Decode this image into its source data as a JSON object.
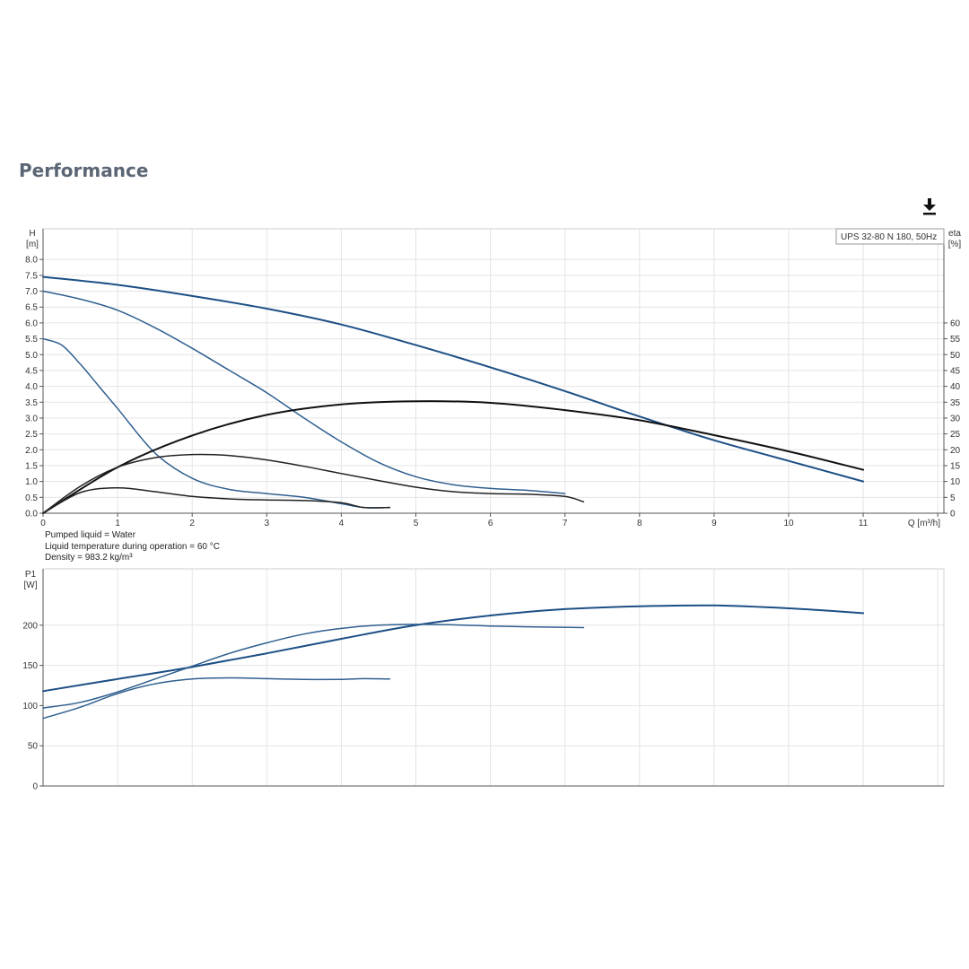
{
  "page": {
    "heading": "Performance",
    "download_icon": "download-icon",
    "colors": {
      "blue": "#2f5f8f",
      "dark_blue": "#1d4f85",
      "black": "#111111",
      "grid": "#e2e2e2"
    }
  },
  "legend": {
    "text": "UPS 32-80 N 180, 50Hz"
  },
  "conditions": [
    "Pumped liquid = Water",
    "Liquid temperature during operation = 60 °C",
    "Density = 983.2 kg/m³"
  ],
  "chart_data": [
    {
      "type": "line",
      "name": "head-and-efficiency",
      "xlabel": "Q [m³/h]",
      "ylabel": "H\n[m]",
      "y2label": "eta\n[%]",
      "xlim": [
        0,
        12
      ],
      "ylim": [
        0,
        9
      ],
      "y2lim": [
        0,
        90
      ],
      "xticks": [
        0,
        1,
        2,
        3,
        4,
        5,
        6,
        7,
        8,
        9,
        10,
        11
      ],
      "yticks": [
        0,
        0.5,
        1,
        1.5,
        2,
        2.5,
        3,
        3.5,
        4,
        4.5,
        5,
        5.5,
        6,
        6.5,
        7,
        7.5,
        8
      ],
      "yticks_labels": [
        "0.0",
        "0.5",
        "1.0",
        "1.5",
        "2.0",
        "2.5",
        "3.0",
        "3.5",
        "4.0",
        "4.5",
        "5.0",
        "5.5",
        "6.0",
        "6.5",
        "7.0",
        "7.5",
        "8.0"
      ],
      "y2ticks": [
        0,
        5,
        10,
        15,
        20,
        25,
        30,
        35,
        40,
        45,
        50,
        55,
        60
      ],
      "grid": true,
      "series": [
        {
          "kind": "head",
          "color": "#1d4f85",
          "width": 2,
          "x": [
            0,
            1,
            2,
            3,
            4,
            5,
            6,
            7,
            8,
            9,
            10,
            11
          ],
          "y": [
            7.45,
            7.2,
            6.85,
            6.45,
            5.95,
            5.3,
            4.6,
            3.85,
            3.05,
            2.3,
            1.65,
            1.0
          ]
        },
        {
          "kind": "head",
          "color": "#2f5f8f",
          "width": 1.5,
          "x": [
            0,
            0.5,
            1,
            1.5,
            2,
            2.5,
            3,
            3.5,
            4,
            4.5,
            5,
            5.5,
            6,
            6.5,
            7
          ],
          "y": [
            7.0,
            6.75,
            6.4,
            5.85,
            5.2,
            4.5,
            3.8,
            3.0,
            2.25,
            1.6,
            1.15,
            0.9,
            0.78,
            0.72,
            0.62
          ]
        },
        {
          "kind": "head",
          "color": "#2f5f8f",
          "width": 1.5,
          "x": [
            0,
            0.25,
            0.5,
            0.75,
            1,
            1.5,
            2,
            2.5,
            3,
            3.5,
            4,
            4.3,
            4.65
          ],
          "y": [
            5.5,
            5.3,
            4.7,
            4.0,
            3.3,
            1.9,
            1.1,
            0.75,
            0.62,
            0.5,
            0.3,
            0.18,
            0.18
          ]
        },
        {
          "kind": "eta",
          "color": "#111111",
          "width": 2,
          "x": [
            0,
            1,
            2,
            3,
            4,
            5,
            6,
            7,
            8,
            9,
            10,
            11
          ],
          "y": [
            0,
            14.5,
            24.5,
            31,
            34.3,
            35.3,
            34.8,
            32.5,
            29.3,
            24.6,
            19.5,
            13.7
          ]
        },
        {
          "kind": "eta",
          "color": "#222222",
          "width": 1.5,
          "x": [
            0,
            0.5,
            1,
            1.5,
            2,
            2.5,
            3,
            3.5,
            4,
            4.5,
            5,
            5.5,
            6,
            6.5,
            7,
            7.25
          ],
          "y": [
            0,
            8.5,
            14.5,
            17.5,
            18.5,
            18.2,
            16.8,
            14.8,
            12.5,
            10.3,
            8.2,
            6.8,
            6.2,
            6.0,
            5.3,
            3.6
          ]
        },
        {
          "kind": "eta",
          "color": "#222222",
          "width": 1.5,
          "x": [
            0,
            0.5,
            1,
            1.5,
            2,
            2.5,
            3,
            3.5,
            4,
            4.3,
            4.65
          ],
          "y": [
            0,
            6.5,
            8.0,
            6.8,
            5.3,
            4.5,
            4.2,
            4.0,
            3.3,
            1.8,
            1.8
          ]
        }
      ]
    },
    {
      "type": "line",
      "name": "power",
      "ylabel": "P1\n[W]",
      "xlim": [
        0,
        12
      ],
      "ylim": [
        0,
        270
      ],
      "xticks": [
        0,
        1,
        2,
        3,
        4,
        5,
        6,
        7,
        8,
        9,
        10,
        11
      ],
      "yticks": [
        0,
        50,
        100,
        150,
        200
      ],
      "grid": true,
      "series": [
        {
          "color": "#1d4f85",
          "width": 2,
          "x": [
            0,
            1,
            2,
            3,
            4,
            5,
            6,
            7,
            8,
            9,
            10,
            11
          ],
          "y": [
            118,
            133,
            148,
            165,
            183,
            200,
            212,
            220,
            223.5,
            224.5,
            221,
            215
          ]
        },
        {
          "color": "#2f5f8f",
          "width": 1.5,
          "x": [
            0,
            0.5,
            1,
            1.5,
            2,
            2.5,
            3,
            3.5,
            4,
            4.5,
            5,
            5.5,
            6,
            6.5,
            7.25
          ],
          "y": [
            97,
            104,
            117,
            133,
            149,
            165,
            178,
            189,
            196,
            200,
            201,
            200.5,
            199,
            198,
            197
          ]
        },
        {
          "color": "#2f5f8f",
          "width": 1.5,
          "x": [
            0,
            0.5,
            1,
            1.5,
            2,
            2.5,
            3,
            3.5,
            4,
            4.3,
            4.65
          ],
          "y": [
            84,
            98,
            115,
            127,
            133,
            134.5,
            133.5,
            132.5,
            132.5,
            133.5,
            133
          ]
        }
      ]
    }
  ]
}
